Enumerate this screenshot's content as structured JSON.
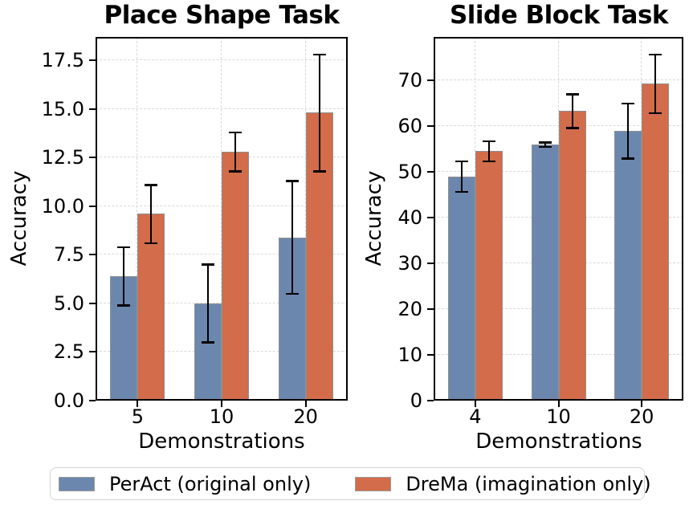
{
  "figure": {
    "background": "#ffffff"
  },
  "colors": {
    "peract_blue": "#6b87ae",
    "drema_orange": "#d26c4a",
    "bar_edge": "#8f8f8f",
    "grid": "#d9d9d9"
  },
  "legend": {
    "items": [
      {
        "label": "PerAct (original only)",
        "color": "#6b87ae"
      },
      {
        "label": "DreMa (imagination only)",
        "color": "#d26c4a"
      }
    ]
  },
  "chart_data": [
    {
      "type": "bar",
      "title": "Place Shape Task",
      "xlabel": "Demonstrations",
      "ylabel": "Accuracy",
      "categories": [
        "5",
        "10",
        "20"
      ],
      "series": [
        {
          "name": "PerAct (original only)",
          "color": "#6b87ae",
          "values": [
            6.4,
            5.0,
            8.4
          ],
          "errors": [
            1.5,
            2.0,
            2.9
          ]
        },
        {
          "name": "DreMa (imagination only)",
          "color": "#d26c4a",
          "values": [
            9.6,
            12.8,
            14.8
          ],
          "errors": [
            1.5,
            1.0,
            3.0
          ]
        }
      ],
      "ylim": [
        0,
        18.7
      ],
      "yticks": {
        "values": [
          0,
          2.5,
          5,
          7.5,
          10,
          12.5,
          15,
          17.5
        ],
        "labels": [
          "0.0",
          "2.5",
          "5.0",
          "7.5",
          "10.0",
          "12.5",
          "15.0",
          "17.5"
        ]
      },
      "grid": true,
      "error_bars": true,
      "legend_position": "bottom"
    },
    {
      "type": "bar",
      "title": "Slide Block Task",
      "xlabel": "Demonstrations",
      "ylabel": "Accuracy",
      "categories": [
        "4",
        "10",
        "20"
      ],
      "series": [
        {
          "name": "PerAct (original only)",
          "color": "#6b87ae",
          "values": [
            49.0,
            56.0,
            59.0
          ],
          "errors": [
            3.3,
            0.5,
            6.0
          ]
        },
        {
          "name": "DreMa (imagination only)",
          "color": "#d26c4a",
          "values": [
            54.5,
            63.3,
            69.3
          ],
          "errors": [
            2.2,
            3.7,
            6.4
          ]
        }
      ],
      "ylim": [
        0,
        79.5
      ],
      "yticks": {
        "values": [
          0,
          10,
          20,
          30,
          40,
          50,
          60,
          70
        ],
        "labels": [
          "0",
          "10",
          "20",
          "30",
          "40",
          "50",
          "60",
          "70"
        ]
      },
      "grid": true,
      "error_bars": true,
      "legend_position": "bottom"
    }
  ]
}
